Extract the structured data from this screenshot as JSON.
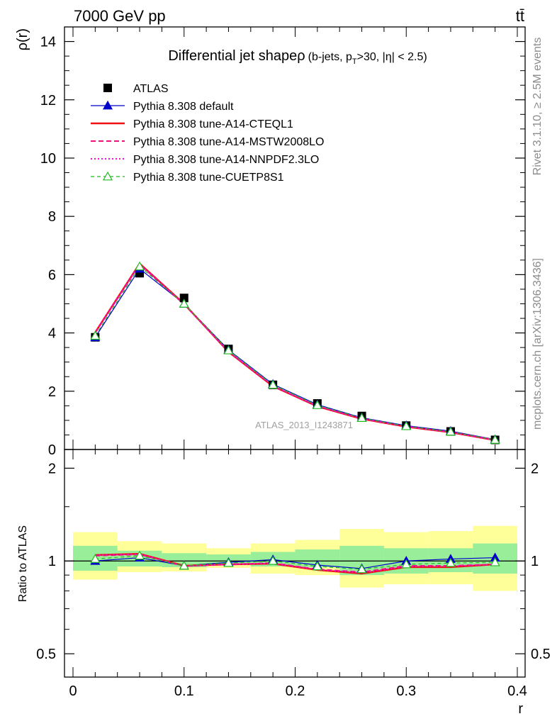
{
  "header": {
    "left": "7000 GeV pp",
    "right": "tt̄"
  },
  "side_labels": {
    "rivet": "Rivet 3.1.10, ≥ 2.5M events",
    "mcplots": "mcplots.cern.ch [arXiv:1306.3436]"
  },
  "chart_data": [
    {
      "panel": "main",
      "type": "line",
      "title_main": "Differential jet shapeρ",
      "title_sub": "(b-jets, p",
      "title_sub_T": "T",
      "title_sub_tail": ">30, |η| < 2.5)",
      "ylabel": "ρ(r)",
      "xlabel": "r",
      "xlim": [
        0,
        0.4
      ],
      "ylim": [
        0,
        14.5
      ],
      "yticks": [
        0,
        2,
        4,
        6,
        8,
        10,
        12,
        14
      ],
      "ytick_labels": [
        "0",
        "2",
        "4",
        "6",
        "8",
        "10",
        "12",
        "14"
      ],
      "watermark": "ATLAS_2013_I1243871",
      "x": [
        0.02,
        0.06,
        0.1,
        0.14,
        0.18,
        0.22,
        0.26,
        0.3,
        0.34,
        0.38
      ],
      "series": [
        {
          "name": "ATLAS",
          "color": "#000000",
          "style": "data",
          "values": [
            3.85,
            6.05,
            5.2,
            3.45,
            2.22,
            1.58,
            1.15,
            0.82,
            0.62,
            0.33
          ]
        },
        {
          "name": "Pythia 8.308 default",
          "color": "#0000cc",
          "style": "solid-triangle",
          "values": [
            3.85,
            6.2,
            5.0,
            3.42,
            2.24,
            1.54,
            1.09,
            0.82,
            0.63,
            0.34
          ]
        },
        {
          "name": "Pythia 8.308 tune-A14-CTEQL1",
          "color": "#ee1111",
          "style": "solid-thick",
          "values": [
            4.02,
            6.38,
            5.0,
            3.35,
            2.17,
            1.48,
            1.05,
            0.78,
            0.59,
            0.32
          ]
        },
        {
          "name": "Pythia 8.308 tune-A14-MSTW2008LO",
          "color": "#ee1177",
          "style": "dashed",
          "values": [
            4.0,
            6.35,
            4.98,
            3.36,
            2.18,
            1.49,
            1.06,
            0.79,
            0.6,
            0.32
          ]
        },
        {
          "name": "Pythia 8.308 tune-A14-NNPDF2.3LO",
          "color": "#ee11cc",
          "style": "dotted",
          "values": [
            4.01,
            6.36,
            4.99,
            3.36,
            2.18,
            1.49,
            1.06,
            0.79,
            0.6,
            0.32
          ]
        },
        {
          "name": "Pythia 8.308 tune-CUETP8S1",
          "color": "#22bb22",
          "style": "dashed-triangle-open",
          "values": [
            3.9,
            6.28,
            5.0,
            3.4,
            2.22,
            1.52,
            1.08,
            0.8,
            0.61,
            0.33
          ]
        }
      ]
    },
    {
      "panel": "ratio",
      "type": "line",
      "ylabel": "Ratio to ATLAS",
      "xlabel": "r",
      "xlim": [
        0,
        0.4
      ],
      "ylim": [
        0.42,
        2.3
      ],
      "yticks": [
        0.5,
        1,
        2
      ],
      "ytick_labels": [
        "0.5",
        "1",
        "2"
      ],
      "xticks": [
        0,
        0.1,
        0.2,
        0.3,
        0.4
      ],
      "xtick_labels": [
        "0",
        "0.1",
        "0.2",
        "0.3",
        "0.4"
      ],
      "band_edges": [
        0,
        0.04,
        0.08,
        0.12,
        0.16,
        0.2,
        0.24,
        0.28,
        0.32,
        0.36,
        0.4
      ],
      "band_inner": [
        [
          0.93,
          1.12
        ],
        [
          0.96,
          1.08
        ],
        [
          0.955,
          1.06
        ],
        [
          0.97,
          1.05
        ],
        [
          0.96,
          1.07
        ],
        [
          0.955,
          1.09
        ],
        [
          0.9,
          1.12
        ],
        [
          0.91,
          1.1
        ],
        [
          0.92,
          1.1
        ],
        [
          0.91,
          1.14
        ]
      ],
      "band_outer": [
        [
          0.87,
          1.24
        ],
        [
          0.92,
          1.16
        ],
        [
          0.925,
          1.14
        ],
        [
          0.95,
          1.1
        ],
        [
          0.91,
          1.14
        ],
        [
          0.9,
          1.17
        ],
        [
          0.82,
          1.27
        ],
        [
          0.84,
          1.24
        ],
        [
          0.84,
          1.25
        ],
        [
          0.8,
          1.3
        ]
      ],
      "x": [
        0.02,
        0.06,
        0.1,
        0.14,
        0.18,
        0.22,
        0.26,
        0.3,
        0.34,
        0.38
      ],
      "series": [
        {
          "name": "Pythia 8.308 default",
          "color": "#0000cc",
          "style": "solid-triangle",
          "values": [
            1.0,
            1.025,
            0.965,
            0.99,
            1.01,
            0.97,
            0.945,
            1.0,
            1.015,
            1.025
          ]
        },
        {
          "name": "Pythia 8.308 tune-A14-CTEQL1",
          "color": "#ee1111",
          "style": "solid-thick",
          "values": [
            1.045,
            1.055,
            0.965,
            0.975,
            0.98,
            0.935,
            0.91,
            0.955,
            0.955,
            0.975
          ]
        },
        {
          "name": "Pythia 8.308 tune-A14-MSTW2008LO",
          "color": "#ee1177",
          "style": "dashed",
          "values": [
            1.04,
            1.05,
            0.962,
            0.975,
            0.985,
            0.94,
            0.92,
            0.965,
            0.965,
            0.975
          ]
        },
        {
          "name": "Pythia 8.308 tune-A14-NNPDF2.3LO",
          "color": "#ee11cc",
          "style": "dotted",
          "values": [
            1.045,
            1.052,
            0.962,
            0.975,
            0.982,
            0.938,
            0.915,
            0.96,
            0.962,
            0.975
          ]
        },
        {
          "name": "Pythia 8.308 tune-CUETP8S1",
          "color": "#22bb22",
          "style": "dashed-triangle-open",
          "values": [
            1.015,
            1.04,
            0.965,
            0.985,
            1.0,
            0.96,
            0.94,
            0.975,
            0.985,
            0.99
          ]
        }
      ]
    }
  ]
}
